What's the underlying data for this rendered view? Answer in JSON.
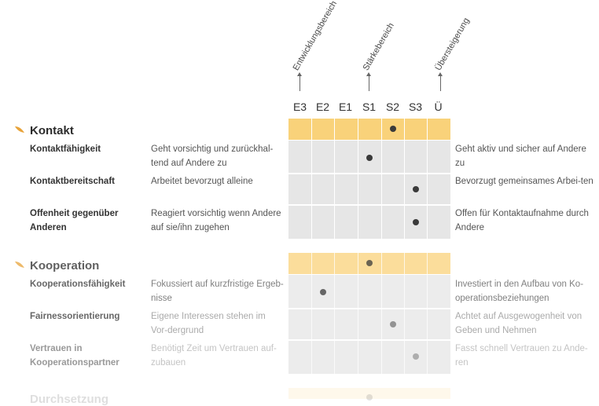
{
  "header": {
    "axis_labels": {
      "development": "Entwicklungsbereich",
      "strength": "Stärkebereich",
      "excess": "Übersteigerung"
    },
    "columns": [
      "E3",
      "E2",
      "E1",
      "S1",
      "S2",
      "S3",
      "Ü"
    ]
  },
  "sections": [
    {
      "title": "Kontakt",
      "section_value": "S2",
      "rows": [
        {
          "label": "Kontaktfähigkeit",
          "left": "Geht vorsichtig und zurückhal-tend auf Andere zu",
          "right": "Geht aktiv und sicher auf Andere zu",
          "value": "S1"
        },
        {
          "label": "Kontaktbereitschaft",
          "left": "Arbeitet bevorzugt alleine",
          "right": "Bevorzugt gemeinsames Arbei-ten",
          "value": "S3"
        },
        {
          "label": "Offenheit gegenüber Anderen",
          "left": "Reagiert vorsichtig wenn Andere auf sie/ihn zugehen",
          "right": "Offen für Kontaktaufnahme durch Andere",
          "value": "S3"
        }
      ]
    },
    {
      "title": "Kooperation",
      "section_value": "S1",
      "rows": [
        {
          "label": "Kooperationsfähigkeit",
          "left": "Fokussiert auf kurzfristige Ergeb-nisse",
          "right": "Investiert in den Aufbau von Ko-operationsbeziehungen",
          "value": "E2"
        },
        {
          "label": "Fairnessorientierung",
          "left": "Eigene Interessen stehen im Vor-dergrund",
          "right": "Achtet auf Ausgewogenheit von Geben und Nehmen",
          "value": "S2"
        },
        {
          "label": "Vertrauen in Kooperationspartner",
          "left": "Benötigt Zeit um Vertrauen auf-zubauen",
          "right": "Fasst schnell Vertrauen zu Ande-ren",
          "value": "S3"
        }
      ]
    },
    {
      "title": "Durchsetzung",
      "section_value": "S1"
    }
  ],
  "colors": {
    "band": "#f9d27a",
    "grid": "#e6e6e6",
    "dot": "#3a3a3a",
    "leaf": "#e8a33a"
  }
}
